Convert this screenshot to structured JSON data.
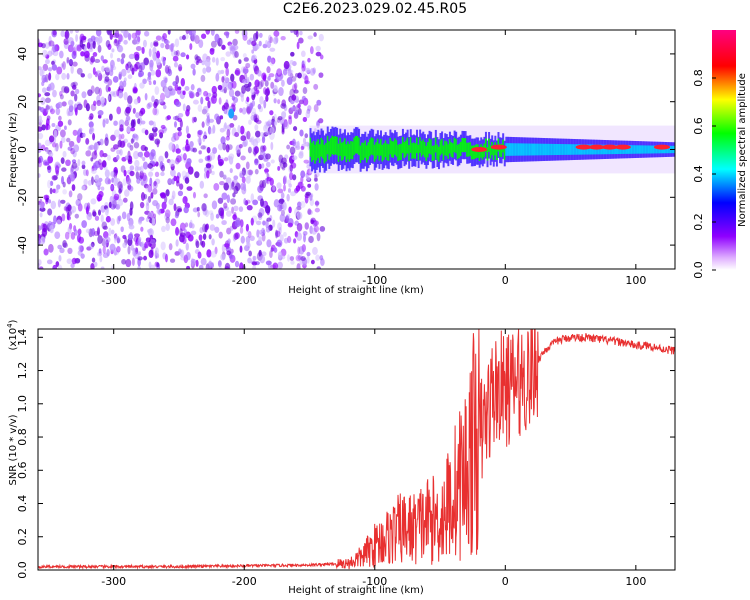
{
  "title": "C2E6.2023.029.02.45.R05",
  "chart_data": [
    {
      "type": "heatmap",
      "xlabel": "Height of straight line (km)",
      "ylabel": "Frequency (Hz)",
      "xlim": [
        -358,
        130
      ],
      "ylim": [
        -50,
        50
      ],
      "xticks": [
        -300,
        -200,
        -100,
        0,
        100
      ],
      "yticks": [
        -40,
        -20,
        0,
        20,
        40
      ],
      "colorbar": {
        "label": "Normalized spectral amplitude",
        "range": [
          0,
          1
        ],
        "ticks": [
          0.0,
          0.2,
          0.4,
          0.6,
          0.8
        ],
        "colormap": [
          "#ffffff",
          "#8f00ff",
          "#0000ff",
          "#00ffff",
          "#00ff00",
          "#ffff00",
          "#ff0000",
          "#ff0080"
        ]
      },
      "features": {
        "noise_region_x": [
          -358,
          -140
        ],
        "signal_onset_x": -150,
        "signal_center_freq": 0,
        "signal_halfwidth_start": 8,
        "signal_halfwidth_end": 3,
        "detached_spot": {
          "x": -210,
          "y": 15
        }
      }
    },
    {
      "type": "line",
      "xlabel": "Height of straight line (km)",
      "ylabel": "SNR (10 * v/v)",
      "y_multiplier": "(x10",
      "y_multiplier_exp": "4",
      "y_multiplier_close": ")",
      "xlim": [
        -358,
        130
      ],
      "ylim": [
        0,
        1.45
      ],
      "xticks": [
        -300,
        -200,
        -100,
        0,
        100
      ],
      "yticks": [
        0.0,
        0.2,
        0.4,
        0.6,
        0.8,
        1.0,
        1.2,
        1.4
      ],
      "series": [
        {
          "color": "#e83030",
          "x": [
            -358,
            -300,
            -250,
            -200,
            -150,
            -120,
            -110,
            -100,
            -90,
            -80,
            -70,
            -60,
            -50,
            -40,
            -30,
            -25,
            -20,
            -15,
            -12,
            -10,
            -5,
            0,
            5,
            10,
            15,
            20,
            30,
            40,
            50,
            60,
            70,
            80,
            90,
            100,
            110,
            120,
            130
          ],
          "y": [
            0.02,
            0.02,
            0.02,
            0.025,
            0.03,
            0.04,
            0.08,
            0.15,
            0.2,
            0.25,
            0.25,
            0.3,
            0.3,
            0.45,
            0.6,
            0.75,
            0.8,
            0.9,
            1.0,
            1.05,
            1.1,
            1.08,
            1.1,
            1.15,
            1.15,
            1.2,
            1.32,
            1.38,
            1.4,
            1.4,
            1.39,
            1.38,
            1.37,
            1.35,
            1.35,
            1.33,
            1.32
          ]
        }
      ]
    }
  ]
}
